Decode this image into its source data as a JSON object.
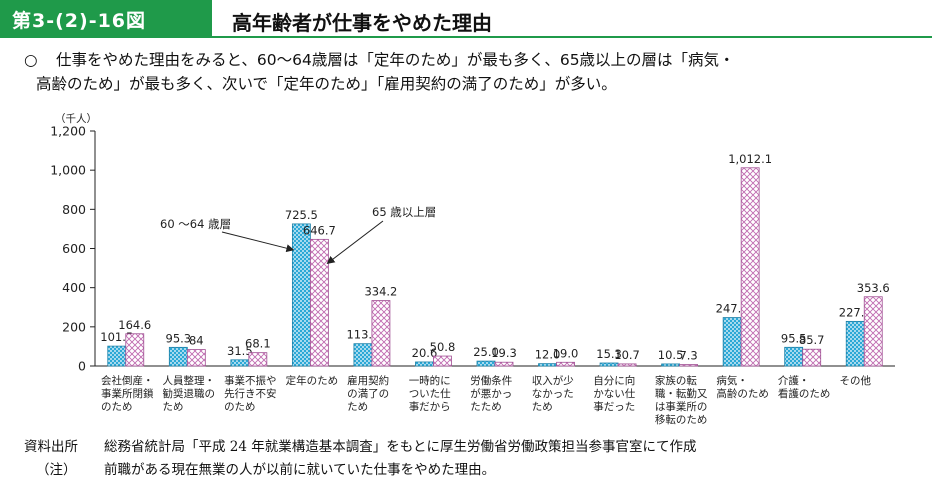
{
  "header": {
    "figure_number": "第3-(2)-16図",
    "title": "高年齢者が仕事をやめた理由"
  },
  "summary": {
    "bullet": "○",
    "line1": "仕事をやめた理由をみると、60～64歳層は「定年のため」が最も多く、65歳以上の層は「病気・",
    "line2": "高齢のため」が最も多く、次いで「定年のため」「雇用契約の満了のため」が多い。"
  },
  "chart_data": {
    "type": "bar",
    "unit_label": "（千人）",
    "ylim": [
      0,
      1200
    ],
    "yticks": [
      "0",
      "200",
      "400",
      "600",
      "800",
      "1,000",
      "1,200"
    ],
    "ytick_values": [
      0,
      200,
      400,
      600,
      800,
      1000,
      1200
    ],
    "grid": false,
    "categories": [
      [
        "会社倒産・",
        "事業所閉鎖",
        "のため"
      ],
      [
        "人員整理・",
        "勧奨退職の",
        "ため"
      ],
      [
        "事業不振や",
        "先行き不安",
        "のため"
      ],
      [
        "定年のため"
      ],
      [
        "雇用契約",
        "の満了の",
        "ため"
      ],
      [
        "一時的に",
        "ついた仕",
        "事だから"
      ],
      [
        "労働条件",
        "が悪かっ",
        "たため"
      ],
      [
        "収入が少",
        "なかった",
        "ため"
      ],
      [
        "自分に向",
        "かない仕",
        "事だった"
      ],
      [
        "家族の転",
        "職・転勤又",
        "は事業所の",
        "移転のため"
      ],
      [
        "病気・",
        "高齢のため"
      ],
      [
        "介護・",
        "看護のため"
      ],
      [
        "その他"
      ]
    ],
    "series": [
      {
        "name": "60 ～64 歳層",
        "values": [
          101.5,
          95.3,
          31.5,
          725.5,
          113.9,
          20.6,
          25.0,
          12.0,
          15.3,
          10.5,
          247.3,
          95.5,
          227.9
        ],
        "labels": [
          "101.5",
          "95.3",
          "31.5",
          "725.5",
          "113.9",
          "20.6",
          "25.0",
          "12.0",
          "15.3",
          "10.5",
          "247.3",
          "95.5",
          "227.9"
        ],
        "color": "#2ca8d6"
      },
      {
        "name": "65 歳以上層",
        "values": [
          164.6,
          84,
          68.1,
          646.7,
          334.2,
          50.8,
          19.3,
          19.0,
          10.7,
          7.3,
          1012.1,
          85.7,
          353.6
        ],
        "labels": [
          "164.6",
          "84",
          "68.1",
          "646.7",
          "334.2",
          "50.8",
          "19.3",
          "19.0",
          "10.7",
          "7.3",
          "1,012.1",
          "85.7",
          "353.6"
        ],
        "color": "#c06ab0"
      }
    ],
    "annotations": [
      {
        "text": "60 ～64 歳層",
        "series": 0
      },
      {
        "text": "65 歳以上層",
        "series": 1
      }
    ]
  },
  "footer": {
    "source_label": "資料出所",
    "source_text": "総務省統計局「平成 24 年就業構造基本調査」をもとに厚生労働省労働政策担当参事官室にて作成",
    "note_label": "（注）",
    "note_text": "前職がある現在無業の人が以前に就いていた仕事をやめた理由。"
  }
}
